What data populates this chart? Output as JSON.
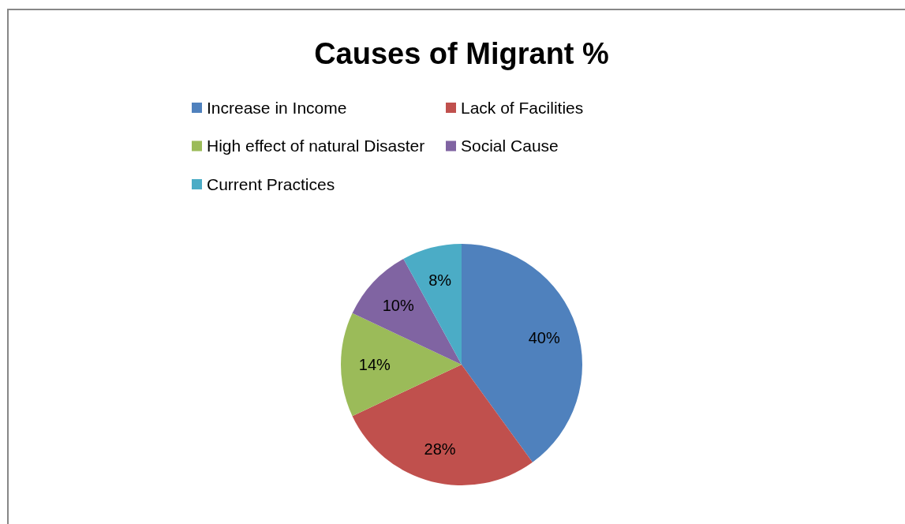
{
  "chart_data": {
    "type": "pie",
    "title": "Causes of Migrant %",
    "categories": [
      "Increase in Income",
      "Lack of Facilities",
      "High effect of natural Disaster",
      "Social Cause",
      "Current Practices"
    ],
    "values": [
      40,
      28,
      14,
      10,
      8
    ],
    "colors": [
      "#4f81bd",
      "#c0504d",
      "#9bbb59",
      "#8064a2",
      "#4bacc6"
    ],
    "value_labels": [
      "40%",
      "28%",
      "14%",
      "10%",
      "8%"
    ],
    "legend": "top"
  }
}
